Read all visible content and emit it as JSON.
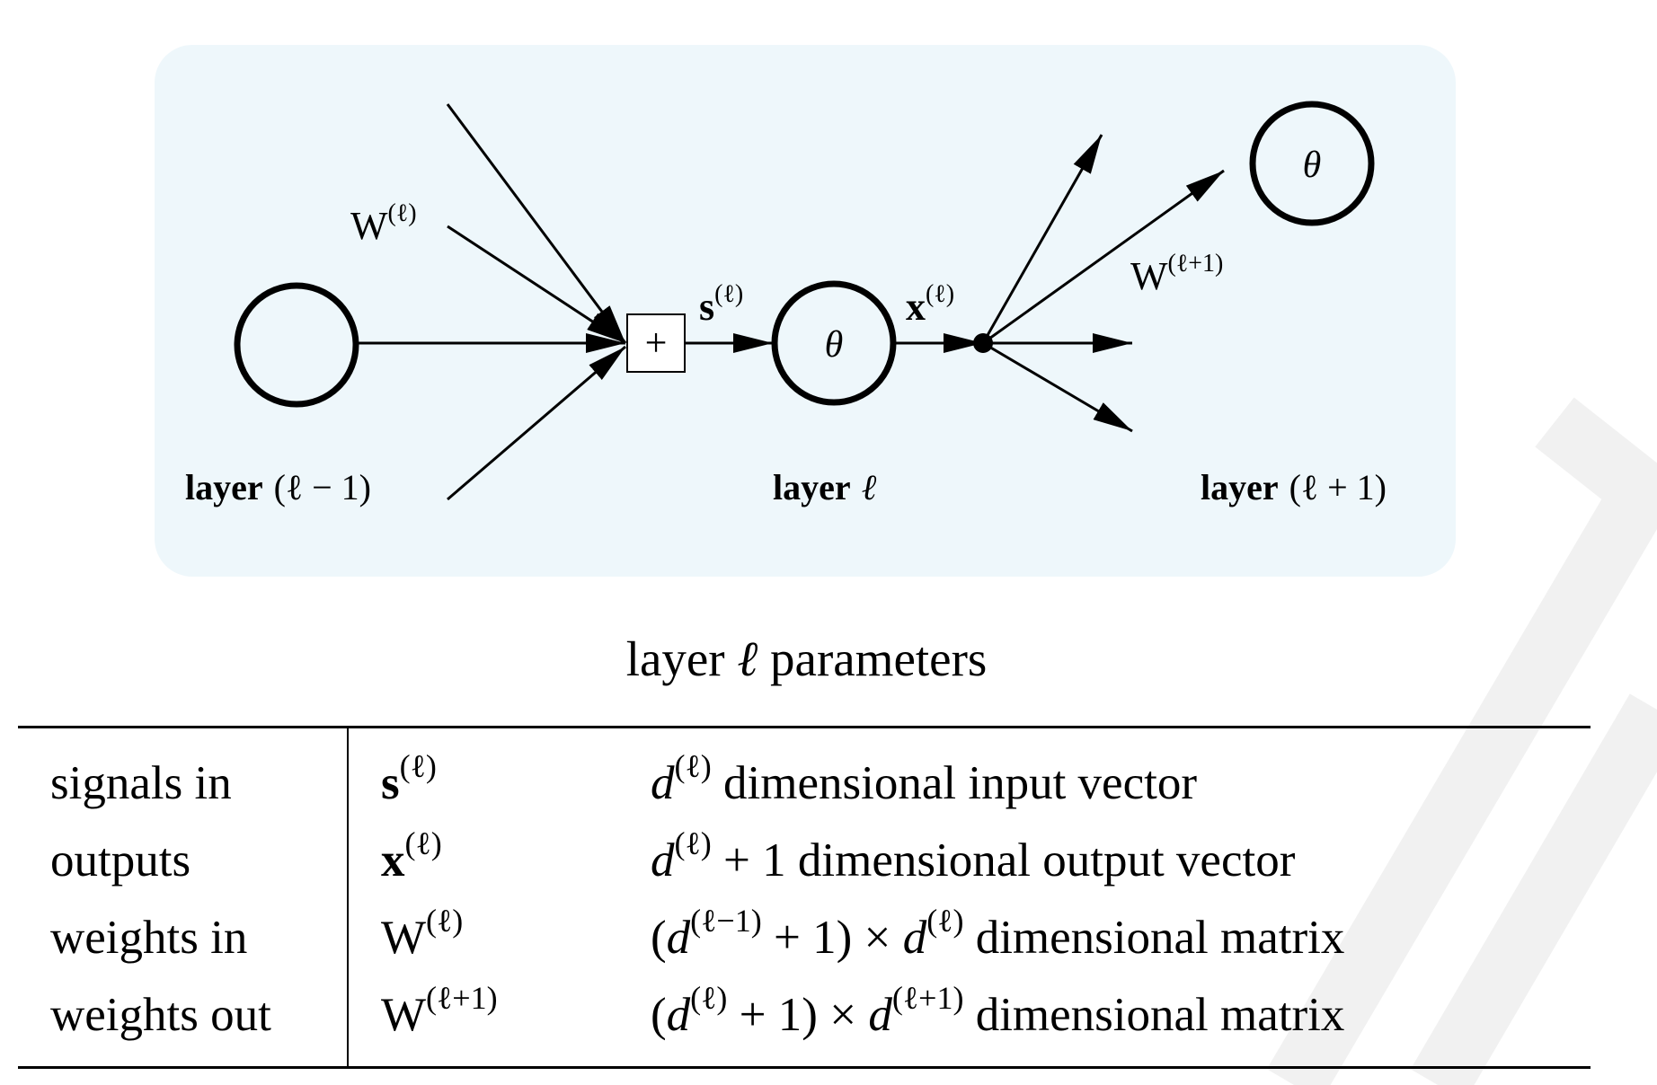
{
  "diagram": {
    "layer_labels": [
      {
        "name": "layer",
        "index": "(ℓ − 1)"
      },
      {
        "name": "layer",
        "index": "ℓ"
      },
      {
        "name": "layer",
        "index": "(ℓ + 1)"
      }
    ],
    "node_theta": "θ",
    "sum_symbol": "+",
    "edge_labels": {
      "w_in_base": "W",
      "w_in_sup": "(ℓ)",
      "s_base": "s",
      "s_sup": "(ℓ)",
      "x_base": "x",
      "x_sup": "(ℓ)",
      "w_out_base": "W",
      "w_out_sup": "(ℓ+1)"
    }
  },
  "caption": {
    "prefix": "layer",
    "ell": "ℓ",
    "suffix": "parameters"
  },
  "table": {
    "rows": [
      {
        "label": "signals in",
        "sym_base": "s",
        "sym_sup": "(ℓ)",
        "sym_bold": true,
        "desc": [
          [
            "mi",
            "d"
          ],
          [
            "sup",
            "(ℓ)"
          ],
          [
            "txt",
            " dimensional input vector"
          ]
        ]
      },
      {
        "label": "outputs",
        "sym_base": "x",
        "sym_sup": "(ℓ)",
        "sym_bold": true,
        "desc": [
          [
            "mi",
            "d"
          ],
          [
            "sup",
            "(ℓ)"
          ],
          [
            "txt",
            " + 1 dimensional output vector"
          ]
        ]
      },
      {
        "label": "weights in",
        "sym_base": "W",
        "sym_sup": "(ℓ)",
        "sym_bold": false,
        "desc": [
          [
            "txt",
            "("
          ],
          [
            "mi",
            "d"
          ],
          [
            "sup",
            "(ℓ−1)"
          ],
          [
            "txt",
            " + 1) × "
          ],
          [
            "mi",
            "d"
          ],
          [
            "sup",
            "(ℓ)"
          ],
          [
            "txt",
            " dimensional matrix"
          ]
        ]
      },
      {
        "label": "weights out",
        "sym_base": "W",
        "sym_sup": "(ℓ+1)",
        "sym_bold": false,
        "desc": [
          [
            "txt",
            "("
          ],
          [
            "mi",
            "d"
          ],
          [
            "sup",
            "(ℓ)"
          ],
          [
            "txt",
            " + 1) × "
          ],
          [
            "mi",
            "d"
          ],
          [
            "sup",
            "(ℓ+1)"
          ],
          [
            "txt",
            " dimensional matrix"
          ]
        ]
      }
    ]
  },
  "colors": {
    "panel": "#eef7fb",
    "ink": "#000000",
    "watermark": "#f1f1f1"
  }
}
